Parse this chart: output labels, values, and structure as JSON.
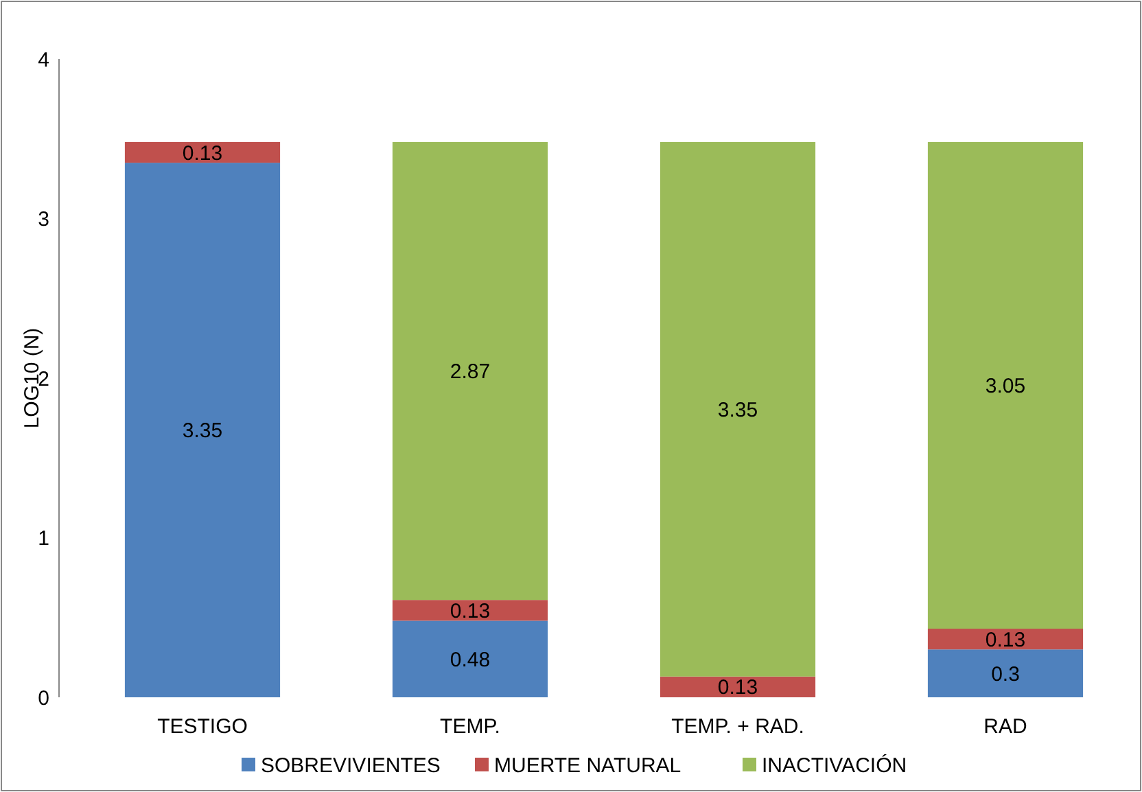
{
  "chart_data": {
    "type": "bar",
    "stacked": true,
    "ylabel": "LOG10 (N)",
    "categories": [
      "TESTIGO",
      "TEMP.",
      "TEMP. + RAD.",
      "RAD"
    ],
    "series": [
      {
        "name": "SOBREVIVIENTES",
        "color": "#4f81bd",
        "values": [
          3.35,
          0.48,
          null,
          0.3
        ]
      },
      {
        "name": "MUERTE NATURAL",
        "color": "#c0504d",
        "values": [
          0.13,
          0.13,
          0.13,
          0.13
        ]
      },
      {
        "name": "INACTIVACIÓN",
        "color": "#9bbb59",
        "values": [
          null,
          2.87,
          3.35,
          3.05
        ]
      }
    ],
    "ylim": [
      0,
      4
    ],
    "yticks": [
      0,
      1,
      2,
      3,
      4
    ],
    "grid": false,
    "legend": "bottom",
    "data_labels": true
  }
}
